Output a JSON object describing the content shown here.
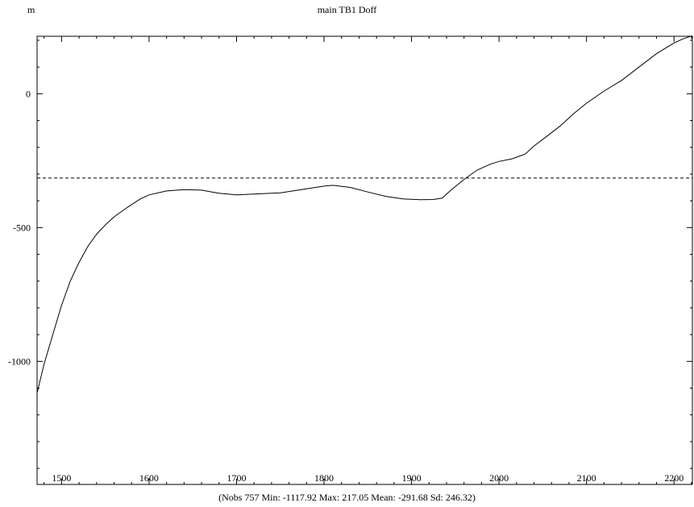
{
  "chart_data": {
    "type": "line",
    "title": "main TB1 Doff",
    "unit": "m",
    "caption": "(Nobs 757 Min: -1117.92 Max: 217.05 Mean: -291.68 Sd: 246.32)",
    "xlim": [
      1472,
      2221
    ],
    "ylim": [
      -1460,
      215
    ],
    "x_ticks": [
      1500,
      1600,
      1700,
      1800,
      1900,
      2000,
      2100,
      2200
    ],
    "y_ticks": [
      0,
      -500,
      -1000
    ],
    "reference_line": {
      "y": -315,
      "style": "dashed"
    },
    "grid": false,
    "series": [
      {
        "x": [
          1472,
          1480,
          1490,
          1500,
          1510,
          1520,
          1530,
          1540,
          1550,
          1560,
          1575,
          1590,
          1600,
          1620,
          1640,
          1660,
          1680,
          1700,
          1720,
          1750,
          1780,
          1800,
          1810,
          1830,
          1850,
          1870,
          1890,
          1910,
          1925,
          1935,
          1945,
          1960,
          1975,
          1990,
          2000,
          2015,
          2030,
          2040,
          2055,
          2070,
          2085,
          2100,
          2120,
          2140,
          2160,
          2180,
          2200,
          2210,
          2221
        ],
        "y": [
          -1118,
          -1010,
          -900,
          -790,
          -700,
          -630,
          -570,
          -525,
          -490,
          -460,
          -425,
          -393,
          -378,
          -363,
          -358,
          -360,
          -372,
          -378,
          -375,
          -370,
          -355,
          -345,
          -342,
          -350,
          -367,
          -383,
          -393,
          -396,
          -395,
          -390,
          -360,
          -320,
          -285,
          -263,
          -253,
          -243,
          -225,
          -195,
          -158,
          -120,
          -75,
          -35,
          10,
          50,
          100,
          150,
          190,
          205,
          217
        ]
      }
    ]
  }
}
